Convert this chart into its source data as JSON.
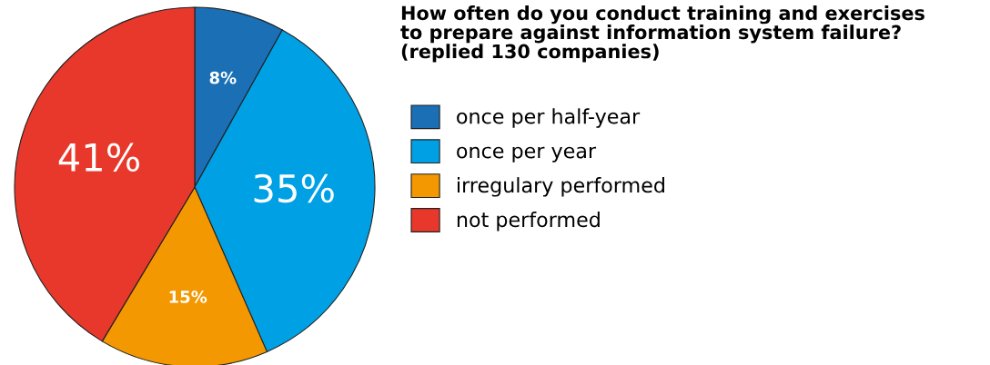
{
  "chart_data": {
    "type": "pie",
    "title": "How often do you conduct training and exercises\nto prepare against information system failure?\n(replied 130 companies)",
    "categories": [
      "once per half-year",
      "once per year",
      "irregulary performed",
      "not performed"
    ],
    "values": [
      8,
      35,
      15,
      41
    ],
    "colors": [
      "#1a6fb5",
      "#00a0e4",
      "#f39800",
      "#e8382c"
    ],
    "value_labels": [
      "8%",
      "35%",
      "15%",
      "41%"
    ],
    "legend": "right"
  }
}
